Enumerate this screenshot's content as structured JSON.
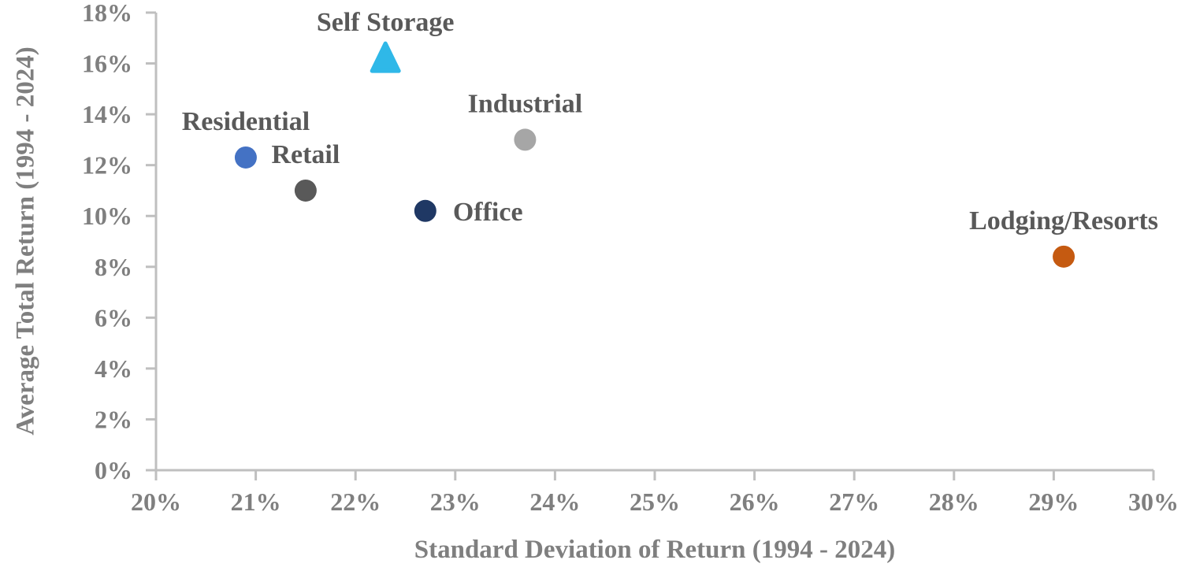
{
  "chart_data": {
    "type": "scatter",
    "title": "",
    "xlabel": "Standard Deviation of Return (1994 - 2024)",
    "ylabel": "Average Total Return (1994 - 2024)",
    "xlim": [
      20,
      30
    ],
    "ylim": [
      0,
      18
    ],
    "grid": false,
    "legend_position": "none",
    "x_ticks": [
      {
        "value": 20,
        "label": "20%"
      },
      {
        "value": 21,
        "label": "21%"
      },
      {
        "value": 22,
        "label": "22%"
      },
      {
        "value": 23,
        "label": "23%"
      },
      {
        "value": 24,
        "label": "24%"
      },
      {
        "value": 25,
        "label": "25%"
      },
      {
        "value": 26,
        "label": "26%"
      },
      {
        "value": 27,
        "label": "27%"
      },
      {
        "value": 28,
        "label": "28%"
      },
      {
        "value": 29,
        "label": "29%"
      },
      {
        "value": 30,
        "label": "30%"
      }
    ],
    "y_ticks": [
      {
        "value": 0,
        "label": "0%"
      },
      {
        "value": 2,
        "label": "2%"
      },
      {
        "value": 4,
        "label": "4%"
      },
      {
        "value": 6,
        "label": "6%"
      },
      {
        "value": 8,
        "label": "8%"
      },
      {
        "value": 10,
        "label": "10%"
      },
      {
        "value": 12,
        "label": "12%"
      },
      {
        "value": 14,
        "label": "14%"
      },
      {
        "value": 16,
        "label": "16%"
      },
      {
        "value": 18,
        "label": "18%"
      }
    ],
    "points": [
      {
        "label": "Residential",
        "x": 20.9,
        "y": 12.3,
        "marker": "circle",
        "color": "#4472C4",
        "label_position": "above"
      },
      {
        "label": "Retail",
        "x": 21.5,
        "y": 11.0,
        "marker": "circle",
        "color": "#595959",
        "label_position": "above"
      },
      {
        "label": "Self Storage",
        "x": 22.3,
        "y": 16.2,
        "marker": "triangle",
        "color": "#2FB8E8",
        "label_position": "above"
      },
      {
        "label": "Office",
        "x": 22.7,
        "y": 10.2,
        "marker": "circle",
        "color": "#1F3864",
        "label_position": "right"
      },
      {
        "label": "Industrial",
        "x": 23.7,
        "y": 13.0,
        "marker": "circle",
        "color": "#A6A6A6",
        "label_position": "above"
      },
      {
        "label": "Lodging/Resorts",
        "x": 29.1,
        "y": 8.4,
        "marker": "circle",
        "color": "#C55A11",
        "label_position": "above"
      }
    ],
    "style": {
      "background": "#FFFFFF",
      "axis_color": "#BFBFBF",
      "tick_label_color": "#7F7F7F",
      "axis_title_color": "#7F7F7F",
      "point_label_color": "#595959"
    }
  }
}
